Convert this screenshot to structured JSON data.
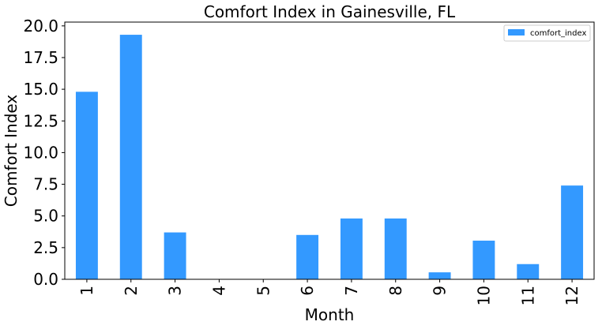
{
  "chart_data": {
    "type": "bar",
    "title": "Comfort Index in Gainesville, FL",
    "xlabel": "Month",
    "ylabel": "Comfort Index",
    "categories": [
      "1",
      "2",
      "3",
      "4",
      "5",
      "6",
      "7",
      "8",
      "9",
      "10",
      "11",
      "12"
    ],
    "series": [
      {
        "name": "comfort_index",
        "color": "#3399ff",
        "values": [
          14.8,
          19.3,
          3.7,
          0.0,
          0.0,
          3.5,
          4.8,
          4.8,
          0.55,
          3.05,
          1.2,
          7.4
        ]
      }
    ],
    "ylim": [
      0,
      20.3
    ],
    "yticks": [
      0.0,
      2.5,
      5.0,
      7.5,
      10.0,
      12.5,
      15.0,
      17.5,
      20.0
    ],
    "ytick_labels": [
      "0.0",
      "2.5",
      "5.0",
      "7.5",
      "10.0",
      "12.5",
      "15.0",
      "17.5",
      "20.0"
    ],
    "grid": false,
    "legend_position": "top-right"
  }
}
